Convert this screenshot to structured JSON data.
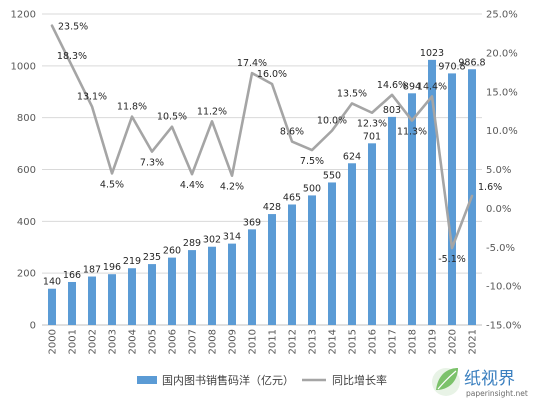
{
  "chart_data": {
    "type": "bar+line",
    "categories": [
      "2000",
      "2001",
      "2002",
      "2003",
      "2004",
      "2005",
      "2006",
      "2007",
      "2008",
      "2009",
      "2010",
      "2011",
      "2012",
      "2013",
      "2014",
      "2015",
      "2016",
      "2017",
      "2018",
      "2019",
      "2020",
      "2021"
    ],
    "series": [
      {
        "name": "国内图书销售码洋（亿元）",
        "type": "bar",
        "axis": "left",
        "color": "#5b9bd5",
        "values": [
          140,
          166,
          187,
          196,
          219,
          235,
          260,
          289,
          302,
          314,
          369,
          428,
          465,
          500,
          550,
          624,
          701,
          803,
          894,
          1023,
          970.8,
          986.8
        ],
        "labels": [
          "140",
          "166",
          "187",
          "196",
          "219",
          "235",
          "260",
          "289",
          "302",
          "314",
          "369",
          "428",
          "465",
          "500",
          "550",
          "624",
          "701",
          "803",
          "894",
          "1023",
          "970.8",
          "986.8"
        ]
      },
      {
        "name": "同比增长率",
        "type": "line",
        "axis": "right",
        "color": "#a5a5a5",
        "values": [
          23.5,
          18.3,
          13.1,
          4.5,
          11.8,
          7.3,
          10.5,
          4.4,
          11.2,
          4.2,
          17.4,
          16.0,
          8.6,
          7.5,
          10.0,
          13.5,
          12.3,
          14.6,
          11.3,
          14.4,
          -5.1,
          1.6
        ],
        "labels": [
          "23.5%",
          "18.3%",
          "13.1%",
          "4.5%",
          "11.8%",
          "7.3%",
          "10.5%",
          "4.4%",
          "11.2%",
          "4.2%",
          "17.4%",
          "16.0%",
          "8.6%",
          "7.5%",
          "10.0%",
          "13.5%",
          "12.3%",
          "14.6%",
          "11.3%",
          "14.4%",
          "-5.1%",
          "1.6%"
        ]
      }
    ],
    "left_axis": {
      "ylim": [
        0,
        1200
      ],
      "ticks": [
        "0",
        "200",
        "400",
        "600",
        "800",
        "1000",
        "1200"
      ]
    },
    "right_axis": {
      "ylim": [
        -15,
        25
      ],
      "ticks": [
        "-15.0%",
        "-10.0%",
        "-5.0%",
        "0.0%",
        "5.0%",
        "10.0%",
        "15.0%",
        "20.0%",
        "25.0%"
      ]
    },
    "grid": true,
    "legend_position": "bottom"
  },
  "watermark": {
    "name": "纸视界",
    "url": "paperinsight.net",
    "icon": "leaf-logo-icon",
    "color": "#3a7fbf"
  }
}
